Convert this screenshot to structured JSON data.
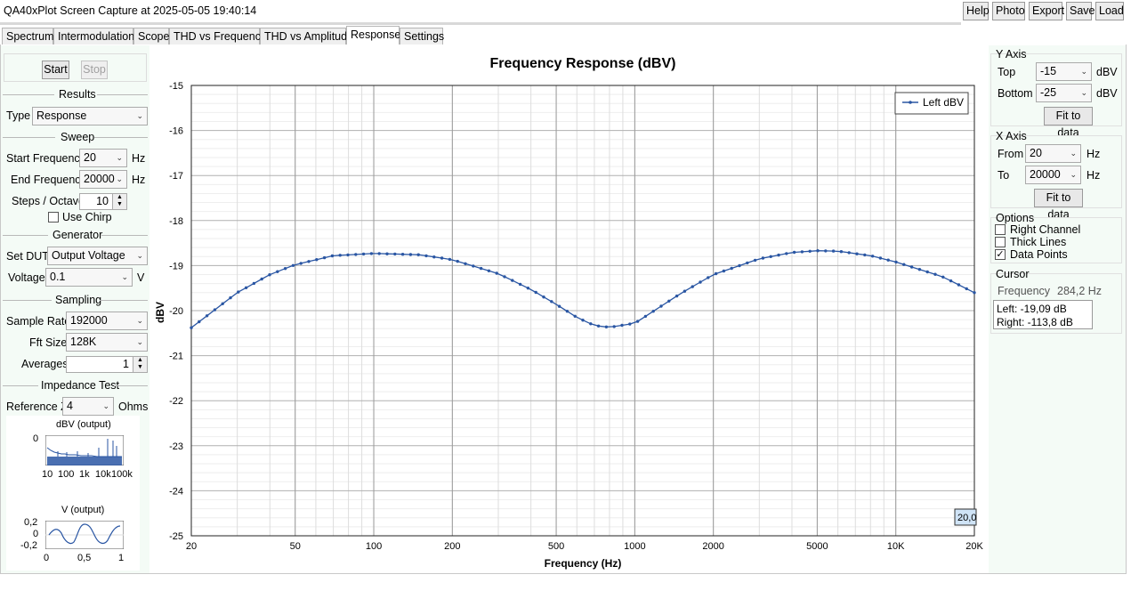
{
  "window": {
    "title": "QA40xPlot Screen Capture at 2025-05-05 19:40:14"
  },
  "toolbar": {
    "help": "Help",
    "photo": "Photo",
    "export": "Export",
    "save": "Save",
    "load": "Load"
  },
  "tabs": [
    "Spectrum",
    "Intermodulation",
    "Scope",
    "THD vs Frequency",
    "THD vs Amplitude",
    "Response",
    "Settings"
  ],
  "active_tab": "Response",
  "left": {
    "start": "Start",
    "stop": "Stop",
    "results": {
      "title": "Results",
      "type_label": "Type",
      "type_value": "Response"
    },
    "sweep": {
      "title": "Sweep",
      "start_label": "Start Frequency",
      "start_value": "20",
      "start_unit": "Hz",
      "end_label": "End Frequency",
      "end_value": "20000",
      "end_unit": "Hz",
      "steps_label": "Steps / Octave",
      "steps_value": "10",
      "chirp_label": "Use Chirp",
      "chirp_checked": false
    },
    "generator": {
      "title": "Generator",
      "setdut_label": "Set DUT",
      "setdut_value": "Output Voltage",
      "voltage_label": "Voltage",
      "voltage_value": "0.1",
      "voltage_unit": "V"
    },
    "sampling": {
      "title": "Sampling",
      "rate_label": "Sample Rate",
      "rate_value": "192000",
      "fft_label": "Fft Size",
      "fft_value": "128K",
      "avg_label": "Averages",
      "avg_value": "1"
    },
    "impedance": {
      "title": "Impedance Test",
      "refz_label": "Reference Z",
      "refz_value": "4",
      "refz_unit": "Ohms"
    },
    "mini_spectrum": {
      "title": "dBV (output)",
      "ytick": "0",
      "xticks": [
        "10",
        "100",
        "1k",
        "10k",
        "100k"
      ]
    },
    "mini_scope": {
      "title": "V (output)",
      "yticks": [
        "0,2",
        "0",
        "-0,2"
      ],
      "xticks": [
        "0",
        "0,5",
        "1"
      ]
    }
  },
  "right": {
    "yaxis": {
      "title": "Y Axis",
      "top_label": "Top",
      "top_value": "-15",
      "top_unit": "dBV",
      "bottom_label": "Bottom",
      "bottom_value": "-25",
      "bottom_unit": "dBV",
      "fit": "Fit to data"
    },
    "xaxis": {
      "title": "X Axis",
      "from_label": "From",
      "from_value": "20",
      "from_unit": "Hz",
      "to_label": "To",
      "to_value": "20000",
      "to_unit": "Hz",
      "fit": "Fit to data"
    },
    "options": {
      "title": "Options",
      "right_channel": "Right Channel",
      "right_channel_checked": false,
      "thick_lines": "Thick Lines",
      "thick_lines_checked": false,
      "data_points": "Data Points",
      "data_points_checked": true
    },
    "cursor": {
      "title": "Cursor",
      "freq_label": "Frequency",
      "freq_value": "284,2 Hz",
      "left_readout": "Left: -19,09 dB",
      "right_readout": "Right: -113,8 dB"
    }
  },
  "chart_data": {
    "type": "line",
    "title": "Frequency Response (dBV)",
    "xlabel": "Frequency (Hz)",
    "ylabel": "dBV",
    "x_scale": "log",
    "xlim": [
      20,
      20000
    ],
    "ylim": [
      -25,
      -15
    ],
    "x_tick_labels": [
      "20",
      "50",
      "100",
      "200",
      "500",
      "1000",
      "2000",
      "5000",
      "10K",
      "20K"
    ],
    "x_tick_values": [
      20,
      50,
      100,
      200,
      500,
      1000,
      2000,
      5000,
      10000,
      20000
    ],
    "y_ticks": [
      -15,
      -16,
      -17,
      -18,
      -19,
      -20,
      -21,
      -22,
      -23,
      -24,
      -25
    ],
    "grid": true,
    "legend": "top-right",
    "color": "#2a56a3",
    "cursor_tag": "20,0",
    "series": [
      {
        "name": "Left dBV",
        "x": [
          20,
          30,
          40,
          50,
          70,
          100,
          150,
          200,
          300,
          400,
          500,
          600,
          700,
          800,
          1000,
          1500,
          2000,
          3000,
          4000,
          5000,
          6000,
          8000,
          10000,
          15000,
          20000
        ],
        "y": [
          -20.38,
          -19.6,
          -19.2,
          -18.98,
          -18.78,
          -18.73,
          -18.76,
          -18.87,
          -19.18,
          -19.53,
          -19.86,
          -20.15,
          -20.33,
          -20.37,
          -20.28,
          -19.62,
          -19.2,
          -18.85,
          -18.71,
          -18.67,
          -18.68,
          -18.78,
          -18.92,
          -19.24,
          -19.6
        ]
      }
    ]
  }
}
